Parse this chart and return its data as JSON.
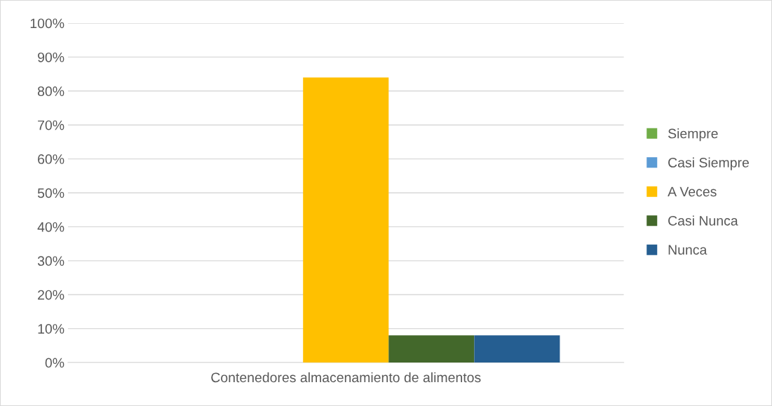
{
  "chart_data": {
    "type": "bar",
    "categories": [
      "Contenedores almacenamiento de alimentos"
    ],
    "series": [
      {
        "name": "Siempre",
        "color": "#70ad47",
        "values": [
          0
        ]
      },
      {
        "name": "Casi Siempre",
        "color": "#5b9bd5",
        "values": [
          0
        ]
      },
      {
        "name": "A Veces",
        "color": "#ffc000",
        "values": [
          84
        ]
      },
      {
        "name": "Casi Nunca",
        "color": "#43682b",
        "values": [
          8
        ]
      },
      {
        "name": "Nunca",
        "color": "#255e91",
        "values": [
          8
        ]
      }
    ],
    "ylim": [
      0,
      100
    ],
    "yticks": [
      {
        "value": 0,
        "label": "0%"
      },
      {
        "value": 10,
        "label": "10%"
      },
      {
        "value": 20,
        "label": "20%"
      },
      {
        "value": 30,
        "label": "30%"
      },
      {
        "value": 40,
        "label": "40%"
      },
      {
        "value": 50,
        "label": "50%"
      },
      {
        "value": 60,
        "label": "60%"
      },
      {
        "value": 70,
        "label": "70%"
      },
      {
        "value": 80,
        "label": "80%"
      },
      {
        "value": 90,
        "label": "90%"
      },
      {
        "value": 100,
        "label": "100%"
      }
    ],
    "grid": "y",
    "legend": "right"
  }
}
